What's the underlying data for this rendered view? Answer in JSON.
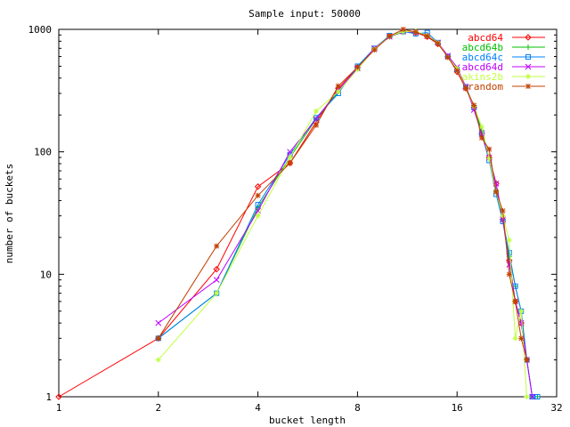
{
  "chart_data": {
    "type": "line",
    "title": "Sample input: 50000",
    "xlabel": "bucket length",
    "ylabel": "number of buckets",
    "xscale": "log2",
    "yscale": "log10",
    "xlim": [
      1,
      32
    ],
    "ylim": [
      1,
      1000
    ],
    "x_ticks": [
      1,
      2,
      4,
      8,
      16,
      32
    ],
    "x_tick_labels": [
      "1",
      "2",
      "4",
      "8",
      "16",
      "32"
    ],
    "y_ticks": [
      1,
      10,
      100,
      1000
    ],
    "y_tick_labels": [
      "1",
      "10",
      "100",
      "1000"
    ],
    "grid": false,
    "legend_position": "top-right",
    "series": [
      {
        "name": "abcd64",
        "color": "#ff0000",
        "marker": "diamond",
        "points": [
          [
            1,
            1
          ],
          [
            2,
            3
          ],
          [
            3,
            11
          ],
          [
            4,
            52
          ],
          [
            5,
            81
          ],
          [
            6,
            175
          ],
          [
            7,
            330
          ],
          [
            8,
            490
          ],
          [
            9,
            690
          ],
          [
            10,
            880
          ],
          [
            11,
            960
          ],
          [
            12,
            940
          ],
          [
            13,
            870
          ],
          [
            14,
            760
          ],
          [
            15,
            600
          ],
          [
            16,
            450
          ],
          [
            17,
            330
          ],
          [
            18,
            230
          ],
          [
            19,
            140
          ],
          [
            20,
            90
          ],
          [
            21,
            55
          ],
          [
            22,
            28
          ],
          [
            23,
            13
          ],
          [
            24,
            6
          ],
          [
            25,
            4
          ],
          [
            26,
            2
          ]
        ]
      },
      {
        "name": "abcd64b",
        "color": "#00c000",
        "marker": "plus",
        "points": [
          [
            2,
            3
          ],
          [
            3,
            7
          ],
          [
            4,
            35
          ],
          [
            5,
            90
          ],
          [
            6,
            185
          ],
          [
            7,
            310
          ],
          [
            8,
            480
          ],
          [
            9,
            700
          ],
          [
            10,
            870
          ],
          [
            11,
            950
          ],
          [
            12,
            960
          ],
          [
            13,
            880
          ],
          [
            14,
            770
          ],
          [
            15,
            600
          ],
          [
            16,
            460
          ],
          [
            17,
            340
          ],
          [
            18,
            235
          ],
          [
            19,
            150
          ],
          [
            20,
            88
          ],
          [
            21,
            48
          ],
          [
            22,
            27
          ],
          [
            23,
            14
          ],
          [
            24,
            8
          ],
          [
            25,
            5
          ],
          [
            26,
            2
          ],
          [
            27,
            1
          ],
          [
            28,
            1
          ]
        ]
      },
      {
        "name": "abcd64c",
        "color": "#0080ff",
        "marker": "square",
        "points": [
          [
            2,
            3
          ],
          [
            3,
            7
          ],
          [
            4,
            37
          ],
          [
            5,
            95
          ],
          [
            6,
            190
          ],
          [
            7,
            300
          ],
          [
            8,
            500
          ],
          [
            9,
            700
          ],
          [
            10,
            890
          ],
          [
            11,
            960
          ],
          [
            12,
            920
          ],
          [
            13,
            940
          ],
          [
            14,
            780
          ],
          [
            15,
            600
          ],
          [
            16,
            470
          ],
          [
            17,
            340
          ],
          [
            18,
            230
          ],
          [
            19,
            140
          ],
          [
            20,
            85
          ],
          [
            21,
            45
          ],
          [
            22,
            27
          ],
          [
            23,
            15
          ],
          [
            24,
            8
          ],
          [
            25,
            5
          ],
          [
            26,
            2
          ],
          [
            27,
            1
          ],
          [
            28,
            1
          ]
        ]
      },
      {
        "name": "abcd64d",
        "color": "#c000ff",
        "marker": "x",
        "points": [
          [
            2,
            4
          ],
          [
            3,
            9
          ],
          [
            4,
            33
          ],
          [
            5,
            100
          ],
          [
            6,
            185
          ],
          [
            7,
            320
          ],
          [
            8,
            480
          ],
          [
            9,
            700
          ],
          [
            10,
            870
          ],
          [
            11,
            960
          ],
          [
            12,
            950
          ],
          [
            13,
            880
          ],
          [
            14,
            780
          ],
          [
            15,
            610
          ],
          [
            16,
            490
          ],
          [
            17,
            340
          ],
          [
            18,
            220
          ],
          [
            19,
            140
          ],
          [
            20,
            90
          ],
          [
            21,
            55
          ],
          [
            22,
            28
          ],
          [
            23,
            12
          ],
          [
            24,
            6
          ],
          [
            25,
            4
          ],
          [
            26,
            2
          ],
          [
            27,
            1
          ]
        ]
      },
      {
        "name": "akins2b",
        "color": "#c0ff40",
        "marker": "star",
        "points": [
          [
            2,
            2
          ],
          [
            3,
            7
          ],
          [
            4,
            30
          ],
          [
            5,
            90
          ],
          [
            6,
            215
          ],
          [
            7,
            310
          ],
          [
            8,
            470
          ],
          [
            9,
            690
          ],
          [
            10,
            880
          ],
          [
            11,
            960
          ],
          [
            12,
            960
          ],
          [
            13,
            890
          ],
          [
            14,
            780
          ],
          [
            15,
            590
          ],
          [
            16,
            480
          ],
          [
            17,
            330
          ],
          [
            18,
            235
          ],
          [
            19,
            160
          ],
          [
            20,
            88
          ],
          [
            21,
            47
          ],
          [
            22,
            30
          ],
          [
            23,
            19
          ],
          [
            24,
            3
          ],
          [
            25,
            5
          ],
          [
            26,
            1
          ]
        ]
      },
      {
        "name": "random",
        "color": "#c04000",
        "marker": "asterisk",
        "points": [
          [
            2,
            3
          ],
          [
            3,
            17
          ],
          [
            4,
            44
          ],
          [
            5,
            81
          ],
          [
            6,
            165
          ],
          [
            7,
            345
          ],
          [
            8,
            490
          ],
          [
            9,
            680
          ],
          [
            10,
            880
          ],
          [
            11,
            1000
          ],
          [
            12,
            950
          ],
          [
            13,
            880
          ],
          [
            14,
            770
          ],
          [
            15,
            590
          ],
          [
            16,
            460
          ],
          [
            17,
            330
          ],
          [
            18,
            240
          ],
          [
            19,
            130
          ],
          [
            20,
            105
          ],
          [
            21,
            47
          ],
          [
            22,
            33
          ],
          [
            23,
            10
          ],
          [
            24,
            6
          ],
          [
            25,
            3
          ],
          [
            26,
            2
          ]
        ]
      }
    ]
  }
}
